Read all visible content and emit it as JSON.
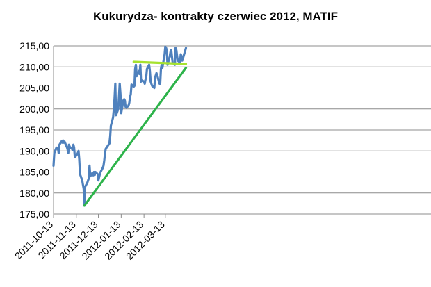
{
  "chart_data": {
    "type": "line",
    "title": "Kukurydza- kontrakty czerwiec 2012, MATIF",
    "xlabel": "",
    "ylabel": "",
    "ylim": [
      175,
      215
    ],
    "xlim": [
      "2011-10-13",
      "2012-04-10"
    ],
    "grid": "horizontal",
    "y_ticks": [
      "175,00",
      "180,00",
      "185,00",
      "190,00",
      "195,00",
      "200,00",
      "205,00",
      "210,00",
      "215,00"
    ],
    "x_ticks": [
      "2011-10-13",
      "2011-11-13",
      "2011-12-13",
      "2012-01-13",
      "2012-02-13",
      "2012-03-13"
    ],
    "colors": {
      "price": "#4f81bd",
      "support": "#2db34a",
      "resistance": "#a6e22e",
      "grid": "#8c8c8c"
    },
    "series": [
      {
        "role": "price",
        "x": [
          "2011-10-13",
          "2011-10-14",
          "2011-10-17",
          "2011-10-18",
          "2011-10-19",
          "2011-10-20",
          "2011-10-21",
          "2011-10-24",
          "2011-10-25",
          "2011-10-26",
          "2011-10-27",
          "2011-10-28",
          "2011-10-31",
          "2011-11-01",
          "2011-11-02",
          "2011-11-03",
          "2011-11-04",
          "2011-11-07",
          "2011-11-08",
          "2011-11-09",
          "2011-11-10",
          "2011-11-11",
          "2011-11-14",
          "2011-11-15",
          "2011-11-16",
          "2011-11-17",
          "2011-11-18",
          "2011-11-21",
          "2011-11-22",
          "2011-11-23",
          "2011-11-24",
          "2011-11-25",
          "2011-11-28",
          "2011-11-29",
          "2011-11-30",
          "2011-12-01",
          "2011-12-02",
          "2011-12-05",
          "2011-12-06",
          "2011-12-07",
          "2011-12-08",
          "2011-12-09",
          "2011-12-12",
          "2011-12-13",
          "2011-12-14",
          "2011-12-15",
          "2011-12-16",
          "2011-12-19",
          "2011-12-20",
          "2011-12-21",
          "2011-12-22",
          "2011-12-23",
          "2011-12-28",
          "2011-12-29",
          "2011-12-30",
          "2012-01-02",
          "2012-01-03",
          "2012-01-04",
          "2012-01-05",
          "2012-01-06",
          "2012-01-09",
          "2012-01-10",
          "2012-01-11",
          "2012-01-12",
          "2012-01-13",
          "2012-01-16",
          "2012-01-17",
          "2012-01-18",
          "2012-01-19",
          "2012-01-20",
          "2012-01-23",
          "2012-01-24",
          "2012-01-25",
          "2012-01-26",
          "2012-01-27",
          "2012-01-30",
          "2012-01-31",
          "2012-02-01",
          "2012-02-02",
          "2012-02-03",
          "2012-02-06",
          "2012-02-07",
          "2012-02-08",
          "2012-02-09",
          "2012-02-10",
          "2012-02-13",
          "2012-02-14",
          "2012-02-15",
          "2012-02-16",
          "2012-02-17",
          "2012-02-20",
          "2012-02-21",
          "2012-02-22",
          "2012-02-23",
          "2012-02-24",
          "2012-02-27",
          "2012-02-28",
          "2012-02-29",
          "2012-03-01",
          "2012-03-02",
          "2012-03-05",
          "2012-03-06",
          "2012-03-07",
          "2012-03-08",
          "2012-03-09",
          "2012-03-12",
          "2012-03-13",
          "2012-03-14",
          "2012-03-15",
          "2012-03-16",
          "2012-03-19",
          "2012-03-20",
          "2012-03-21",
          "2012-03-22",
          "2012-03-23",
          "2012-03-26",
          "2012-03-27",
          "2012-03-28",
          "2012-03-29",
          "2012-03-30",
          "2012-04-02",
          "2012-04-03",
          "2012-04-04",
          "2012-04-05",
          "2012-04-10"
        ],
        "values": [
          186.5,
          189.5,
          190.8,
          190.5,
          190.8,
          189.5,
          191.5,
          192.3,
          192.0,
          192.5,
          192.0,
          192.2,
          191.0,
          190.5,
          189.5,
          191.5,
          191.0,
          190.5,
          190.2,
          191.5,
          190.8,
          188.5,
          189.2,
          189.5,
          190.0,
          188.0,
          184.5,
          183.0,
          182.0,
          181.0,
          177.0,
          181.5,
          182.5,
          183.0,
          183.5,
          186.5,
          184.0,
          184.8,
          184.2,
          185.0,
          184.3,
          185.0,
          184.5,
          183.0,
          183.8,
          184.5,
          185.0,
          186.0,
          186.5,
          187.8,
          189.5,
          190.5,
          191.8,
          193.5,
          196.0,
          198.0,
          200.0,
          202.5,
          206.0,
          198.5,
          200.0,
          203.0,
          206.0,
          203.5,
          199.0,
          202.0,
          202.3,
          202.0,
          200.5,
          200.3,
          200.8,
          201.5,
          202.8,
          203.5,
          205.8,
          205.3,
          205.5,
          209.5,
          210.5,
          207.8,
          209.0,
          208.3,
          210.5,
          206.5,
          206.8,
          206.5,
          206.0,
          207.0,
          207.5,
          209.5,
          210.5,
          209.0,
          206.5,
          206.0,
          205.5,
          205.0,
          207.5,
          208.0,
          208.5,
          208.0,
          206.0,
          206.0,
          209.5,
          210.5,
          209.8,
          213.0,
          214.8,
          214.5,
          214.0,
          210.5,
          212.5,
          213.5,
          214.0,
          212.5,
          211.0,
          210.5,
          214.5,
          214.0,
          212.5,
          211.5,
          211.0,
          213.0,
          212.5,
          211.5,
          214.5
        ]
      },
      {
        "role": "support-trendline",
        "x": [
          "2011-11-24",
          "2012-04-10"
        ],
        "values": [
          177.0,
          209.8
        ]
      },
      {
        "role": "resistance-level",
        "x": [
          "2012-01-30",
          "2012-04-10"
        ],
        "values": [
          211.2,
          210.7
        ]
      }
    ]
  }
}
